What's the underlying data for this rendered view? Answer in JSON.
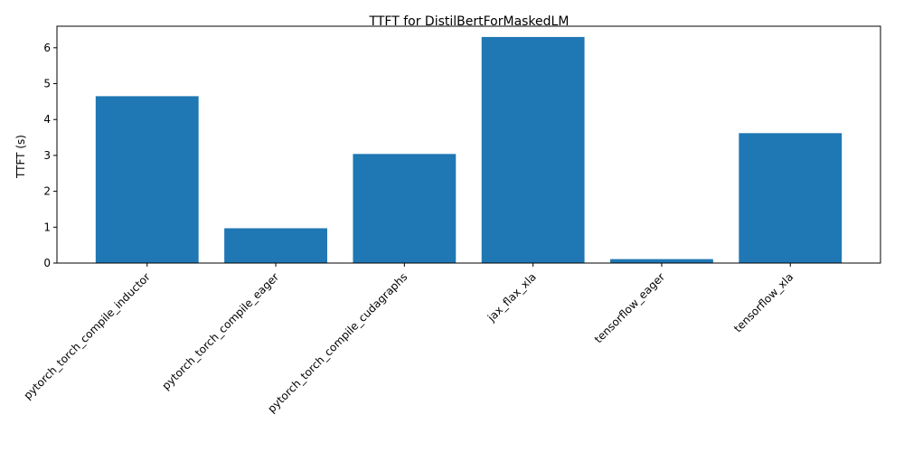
{
  "chart_data": {
    "type": "bar",
    "title": "TTFT for DistilBertForMaskedLM",
    "xlabel": "",
    "ylabel": "TTFT (s)",
    "categories": [
      "pytorch_torch_compile_inductor",
      "pytorch_torch_compile_eager",
      "pytorch_torch_compile_cudagraphs",
      "jax_flax_xla",
      "tensorflow_eager",
      "tensorflow_xla"
    ],
    "values": [
      4.65,
      0.97,
      3.04,
      6.3,
      0.11,
      3.62
    ],
    "ylim": [
      0,
      6.6
    ],
    "yticks": [
      0,
      1,
      2,
      3,
      4,
      5,
      6
    ],
    "bar_color": "#1f77b4",
    "grid": false,
    "legend": "none"
  }
}
